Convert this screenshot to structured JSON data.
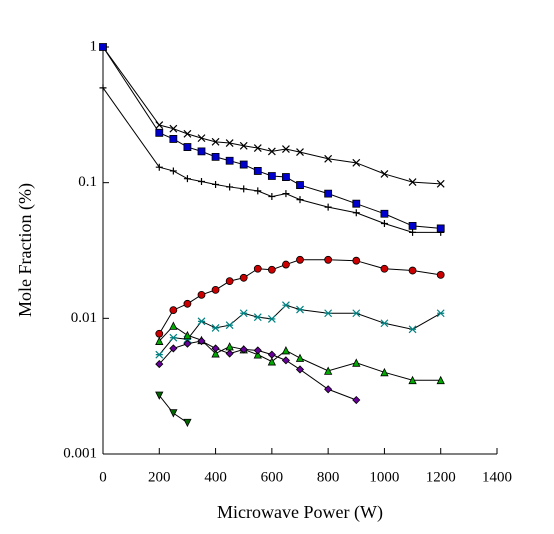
{
  "chart_data": {
    "type": "line",
    "xlabel": "Microwave Power (W)",
    "ylabel": "Mole Fraction (%)",
    "xlim": [
      0,
      1400
    ],
    "xticks": [
      0,
      200,
      400,
      600,
      800,
      1000,
      1200,
      1400
    ],
    "ylim": [
      0.001,
      1
    ],
    "yticks": [
      0.001,
      0.01,
      0.1,
      1
    ],
    "ylog": true,
    "grid": false,
    "x": [
      0,
      200,
      250,
      300,
      350,
      400,
      450,
      500,
      550,
      600,
      650,
      700,
      800,
      900,
      1000,
      1100,
      1200
    ],
    "series": [
      {
        "color": "#000000",
        "marker": "x",
        "values": [
          1,
          0.266,
          0.25,
          0.229,
          0.213,
          0.2,
          0.196,
          0.187,
          0.18,
          0.17,
          0.177,
          0.168,
          0.15,
          0.14,
          0.116,
          0.101,
          0.098
        ]
      },
      {
        "color": "#000000",
        "marker": "plus",
        "values": [
          0.5,
          0.13,
          0.122,
          0.107,
          0.102,
          0.097,
          0.093,
          0.09,
          0.087,
          0.079,
          0.083,
          0.075,
          0.066,
          0.06,
          0.05,
          0.043,
          0.043
        ]
      },
      {
        "color": "#0000cc",
        "marker": "square",
        "values": [
          1,
          0.233,
          0.21,
          0.183,
          0.17,
          0.155,
          0.145,
          0.136,
          0.122,
          0.112,
          0.11,
          0.096,
          0.083,
          0.07,
          0.059,
          0.048,
          0.046
        ]
      },
      {
        "color": "#cc0000",
        "marker": "circle",
        "values": [
          null,
          0.0077,
          0.0115,
          0.0128,
          0.0149,
          0.0162,
          0.0188,
          0.0199,
          0.0232,
          0.0228,
          0.0249,
          0.027,
          0.027,
          0.0266,
          0.0232,
          0.0225,
          0.0209
        ]
      },
      {
        "color": "#008080",
        "marker": "star",
        "values": [
          null,
          0.0054,
          0.0072,
          0.007,
          0.0095,
          0.0085,
          0.0089,
          0.0109,
          0.0102,
          0.0099,
          0.0125,
          0.0116,
          0.0109,
          0.0109,
          0.0092,
          0.0083,
          0.0109
        ]
      },
      {
        "color": "#00aa00",
        "marker": "triangle",
        "values": [
          null,
          0.0068,
          0.0088,
          0.0075,
          0.0069,
          0.0055,
          0.0062,
          0.0059,
          0.0054,
          0.0048,
          0.0058,
          0.0051,
          0.0041,
          0.0047,
          0.004,
          0.0035,
          0.0035
        ]
      },
      {
        "color": "#660099",
        "marker": "diamond",
        "values": [
          null,
          0.0046,
          0.006,
          0.0065,
          0.0068,
          0.006,
          0.0055,
          0.0059,
          0.0058,
          0.0054,
          0.0049,
          0.0042,
          0.003,
          0.0025,
          null,
          null,
          null
        ]
      },
      {
        "color": "#006600",
        "marker": "down-triangle",
        "values": [
          null,
          0.0027,
          0.002,
          0.0017,
          null,
          null,
          null,
          null,
          null,
          null,
          null,
          null,
          null,
          null,
          null,
          null,
          null
        ]
      }
    ]
  }
}
